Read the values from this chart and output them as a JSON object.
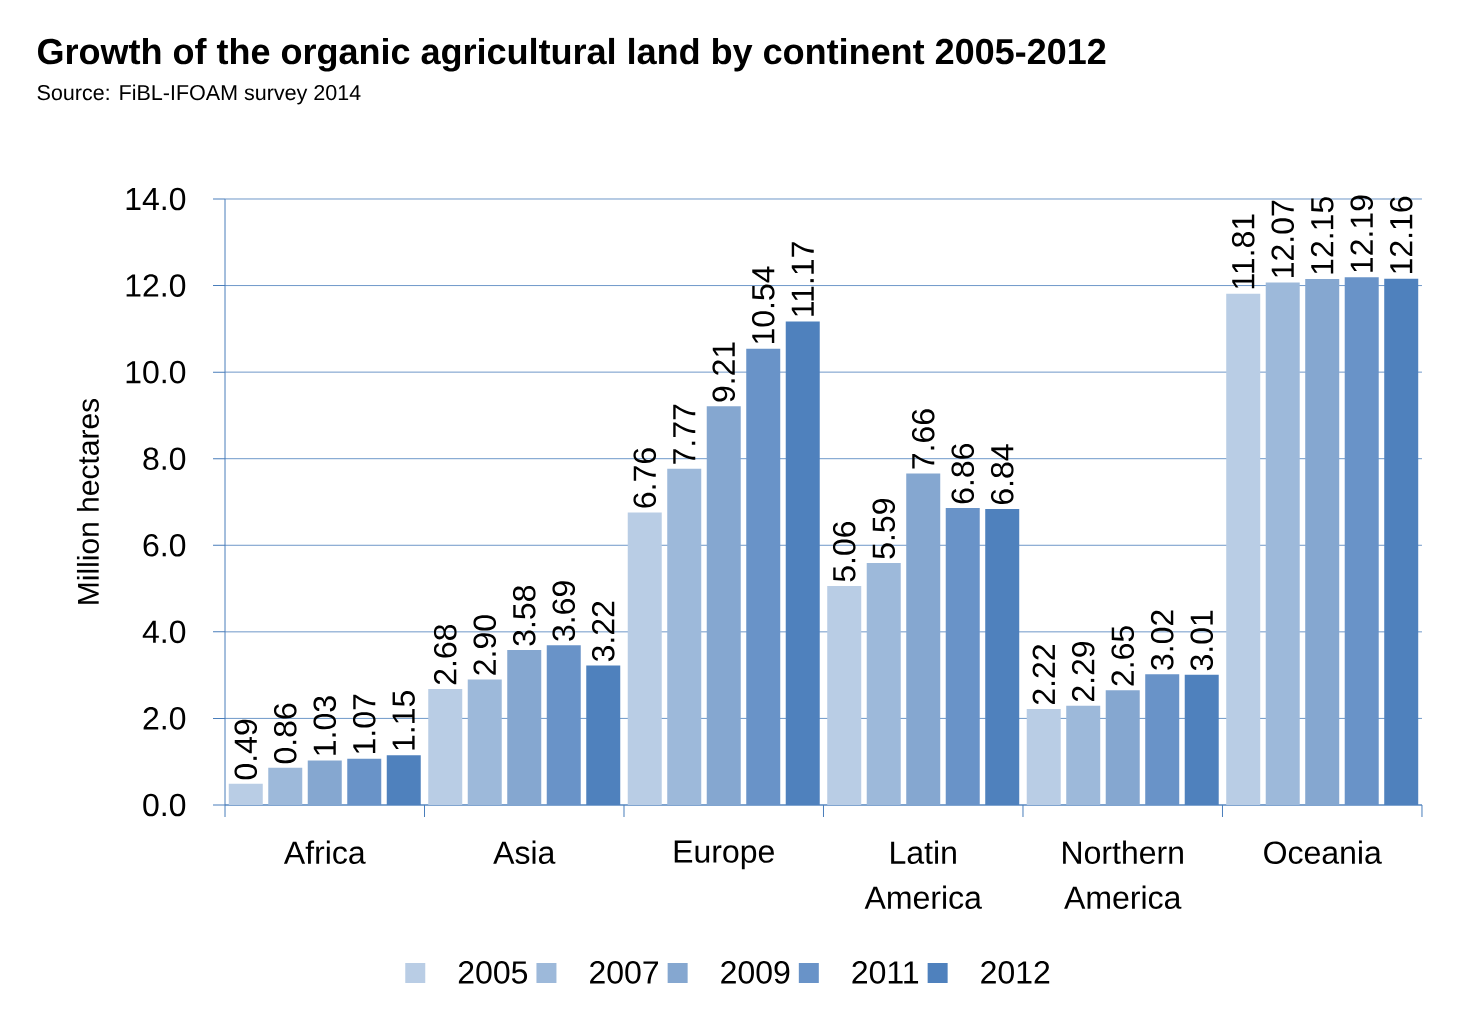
{
  "chart_data": {
    "type": "bar",
    "title": "Growth of the organic agricultural land by continent 2005-2012",
    "annotations": [
      "Source: FiBL-IFOAM survey 2014"
    ],
    "ylabel": "Million hectares",
    "categories": [
      "Africa",
      "Asia",
      "Europe",
      "Latin America",
      "Northern America",
      "Oceania"
    ],
    "series": [
      {
        "name": "2005",
        "color": "#b9cde5",
        "values": [
          0.49,
          2.68,
          6.76,
          5.06,
          2.22,
          11.81
        ],
        "value_labels": [
          "0.49",
          "2.68",
          "6.76",
          "5.06",
          "2.22",
          "11.81"
        ]
      },
      {
        "name": "2007",
        "color": "#9db9da",
        "values": [
          0.86,
          2.9,
          7.77,
          5.59,
          2.29,
          12.07
        ],
        "value_labels": [
          "0.86",
          "2.90",
          "7.77",
          "5.59",
          "2.29",
          "12.07"
        ]
      },
      {
        "name": "2009",
        "color": "#85a7d0",
        "values": [
          1.03,
          3.58,
          9.21,
          7.66,
          2.65,
          12.15
        ],
        "value_labels": [
          "1.03",
          "3.58",
          "9.21",
          "7.66",
          "2.65",
          "12.15"
        ]
      },
      {
        "name": "2011",
        "color": "#6993c8",
        "values": [
          1.07,
          3.69,
          10.54,
          6.86,
          3.02,
          12.19
        ],
        "value_labels": [
          "1.07",
          "3.69",
          "10.54",
          "6.86",
          "3.02",
          "12.19"
        ]
      },
      {
        "name": "2012",
        "color": "#4f81bd",
        "values": [
          1.15,
          3.22,
          11.17,
          6.84,
          3.01,
          12.16
        ],
        "value_labels": [
          "1.15",
          "3.22",
          "11.17",
          "6.84",
          "3.01",
          "12.16"
        ]
      }
    ],
    "ylim": [
      0,
      14
    ],
    "yticks": [
      {
        "value": 0,
        "label": "0.0"
      },
      {
        "value": 2,
        "label": "2.0"
      },
      {
        "value": 4,
        "label": "4.0"
      },
      {
        "value": 6,
        "label": "6.0"
      },
      {
        "value": 8,
        "label": "8.0"
      },
      {
        "value": 10,
        "label": "10.0"
      },
      {
        "value": 12,
        "label": "12.0"
      },
      {
        "value": 14,
        "label": "14.0"
      }
    ],
    "grid": "y",
    "legend": "bottom"
  }
}
